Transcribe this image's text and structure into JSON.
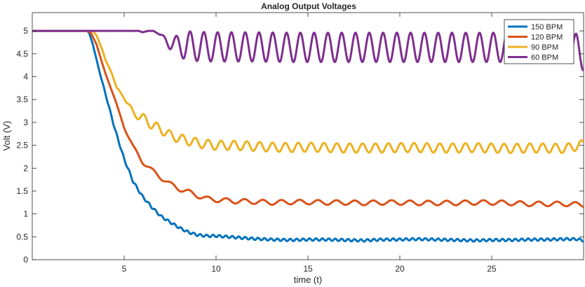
{
  "chart_data": {
    "type": "line",
    "title": "Analog Output Voltages",
    "xlabel": "time (t)",
    "ylabel": "Volt (V)",
    "xlim": [
      0,
      30
    ],
    "ylim": [
      0,
      5.4
    ],
    "x_ticks": [
      5,
      10,
      15,
      20,
      25
    ],
    "y_ticks": [
      0,
      0.5,
      1,
      1.5,
      2,
      2.5,
      3,
      3.5,
      4,
      4.5,
      5
    ],
    "x_tick_labels": [
      "5",
      "10",
      "15",
      "20",
      "25"
    ],
    "y_tick_labels": [
      "0",
      "0.5",
      "1",
      "1.5",
      "2",
      "2.5",
      "3",
      "3.5",
      "4",
      "4.5",
      "5"
    ],
    "grid": false,
    "legend_position": "top-right",
    "series": [
      {
        "name": "150 BPM",
        "color": "#0072BD",
        "points": [
          [
            0,
            5
          ],
          [
            3,
            5
          ],
          [
            3.1,
            4.95
          ],
          [
            3.3,
            4.7
          ],
          [
            3.6,
            4.2
          ],
          [
            4,
            3.6
          ],
          [
            4.5,
            2.85
          ],
          [
            5,
            2.2
          ],
          [
            5.5,
            1.7
          ],
          [
            6,
            1.38
          ],
          [
            6.5,
            1.15
          ],
          [
            7,
            0.95
          ],
          [
            7.5,
            0.82
          ],
          [
            8,
            0.7
          ],
          [
            8.5,
            0.6
          ],
          [
            9,
            0.54
          ],
          [
            9.5,
            0.52
          ],
          [
            10,
            0.52
          ],
          [
            11,
            0.49
          ],
          [
            12,
            0.46
          ],
          [
            13,
            0.44
          ],
          [
            14,
            0.43
          ],
          [
            15,
            0.44
          ],
          [
            16,
            0.44
          ],
          [
            17,
            0.43
          ],
          [
            18,
            0.42
          ],
          [
            19,
            0.44
          ],
          [
            20,
            0.44
          ],
          [
            21,
            0.45
          ],
          [
            22,
            0.44
          ],
          [
            23,
            0.43
          ],
          [
            24,
            0.42
          ],
          [
            25,
            0.43
          ],
          [
            26,
            0.43
          ],
          [
            27,
            0.44
          ],
          [
            28,
            0.44
          ],
          [
            29,
            0.45
          ],
          [
            29.6,
            0.45
          ],
          [
            30,
            0.42
          ]
        ]
      },
      {
        "name": "120 BPM",
        "color": "#D95319",
        "points": [
          [
            0,
            5
          ],
          [
            3,
            5
          ],
          [
            3.2,
            4.95
          ],
          [
            3.5,
            4.7
          ],
          [
            3.8,
            4.3
          ],
          [
            4,
            4.05
          ],
          [
            4.5,
            3.5
          ],
          [
            5,
            2.9
          ],
          [
            5.5,
            2.45
          ],
          [
            6,
            2.15
          ],
          [
            6.5,
            1.95
          ],
          [
            7,
            1.8
          ],
          [
            7.5,
            1.65
          ],
          [
            8,
            1.55
          ],
          [
            8.5,
            1.48
          ],
          [
            9,
            1.4
          ],
          [
            9.5,
            1.33
          ],
          [
            10,
            1.31
          ],
          [
            11,
            1.28
          ],
          [
            12,
            1.27
          ],
          [
            13,
            1.25
          ],
          [
            14,
            1.26
          ],
          [
            15,
            1.26
          ],
          [
            16,
            1.25
          ],
          [
            17,
            1.25
          ],
          [
            18,
            1.24
          ],
          [
            19,
            1.25
          ],
          [
            20,
            1.25
          ],
          [
            21,
            1.24
          ],
          [
            22,
            1.24
          ],
          [
            23,
            1.24
          ],
          [
            24,
            1.25
          ],
          [
            25,
            1.25
          ],
          [
            26,
            1.24
          ],
          [
            27,
            1.22
          ],
          [
            28,
            1.22
          ],
          [
            29,
            1.22
          ],
          [
            30,
            1.2
          ]
        ]
      },
      {
        "name": "90 BPM",
        "color": "#EDB120",
        "points": [
          [
            0,
            5
          ],
          [
            3.3,
            5
          ],
          [
            3.5,
            4.9
          ],
          [
            3.8,
            4.6
          ],
          [
            4,
            4.35
          ],
          [
            4.3,
            4.1
          ],
          [
            4.6,
            3.75
          ],
          [
            5,
            3.55
          ],
          [
            5.5,
            3.2
          ],
          [
            6,
            3.1
          ],
          [
            6.5,
            2.95
          ],
          [
            7,
            2.85
          ],
          [
            7.5,
            2.72
          ],
          [
            8,
            2.65
          ],
          [
            9,
            2.55
          ],
          [
            10,
            2.5
          ],
          [
            11,
            2.5
          ],
          [
            12,
            2.48
          ],
          [
            13,
            2.46
          ],
          [
            14,
            2.45
          ],
          [
            15,
            2.46
          ],
          [
            16,
            2.45
          ],
          [
            17,
            2.44
          ],
          [
            18,
            2.44
          ],
          [
            19,
            2.44
          ],
          [
            20,
            2.45
          ],
          [
            21,
            2.45
          ],
          [
            22,
            2.44
          ],
          [
            23,
            2.44
          ],
          [
            24,
            2.45
          ],
          [
            25,
            2.44
          ],
          [
            26,
            2.43
          ],
          [
            27,
            2.44
          ],
          [
            28,
            2.44
          ],
          [
            29,
            2.43
          ],
          [
            30,
            2.52
          ]
        ]
      },
      {
        "name": "60 BPM",
        "color": "#7E2F8E",
        "points": [
          [
            0,
            5
          ],
          [
            5.8,
            5
          ],
          [
            6,
            4.97
          ],
          [
            6.3,
            5
          ],
          [
            6.6,
            5
          ],
          [
            7,
            4.9
          ],
          [
            7.5,
            4.72
          ],
          [
            8,
            4.68
          ],
          [
            9,
            4.66
          ],
          [
            10,
            4.65
          ],
          [
            12,
            4.65
          ],
          [
            14,
            4.64
          ],
          [
            16,
            4.64
          ],
          [
            18,
            4.64
          ],
          [
            20,
            4.64
          ],
          [
            22,
            4.64
          ],
          [
            24,
            4.64
          ],
          [
            26,
            4.64
          ],
          [
            28,
            4.64
          ],
          [
            29.6,
            4.62
          ],
          [
            30,
            4.45
          ]
        ]
      }
    ]
  }
}
